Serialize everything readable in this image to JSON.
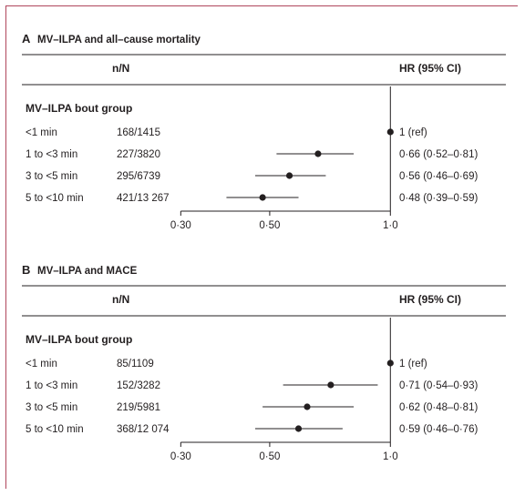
{
  "chart_data": [
    {
      "type": "forest",
      "panel_letter": "A",
      "title": "MV–ILPA and all–cause mortality",
      "col_count_header": "n/N",
      "col_hr_header": "HR (95% CI)",
      "group_label": "MV–ILPA bout group",
      "x_scale": "log",
      "xlim": [
        0.26,
        1.15
      ],
      "xticks": [
        0.3,
        0.5,
        1.0
      ],
      "xtick_labels": [
        "0·30",
        "0·50",
        "1·0"
      ],
      "reference_line": 1.0,
      "rows": [
        {
          "label": "<1 min",
          "nN": "168/1415",
          "hr": 1.0,
          "lo": null,
          "hi": null,
          "text": "1 (ref)"
        },
        {
          "label": "1 to <3 min",
          "nN": "227/3820",
          "hr": 0.66,
          "lo": 0.52,
          "hi": 0.81,
          "text": "0·66 (0·52–0·81)"
        },
        {
          "label": "3 to <5 min",
          "nN": "295/6739",
          "hr": 0.56,
          "lo": 0.46,
          "hi": 0.69,
          "text": "0·56 (0·46–0·69)"
        },
        {
          "label": "5 to <10 min",
          "nN": "421/13 267",
          "hr": 0.48,
          "lo": 0.39,
          "hi": 0.59,
          "text": "0·48 (0·39–0·59)"
        }
      ]
    },
    {
      "type": "forest",
      "panel_letter": "B",
      "title": "MV–ILPA and MACE",
      "col_count_header": "n/N",
      "col_hr_header": "HR (95% CI)",
      "group_label": "MV–ILPA bout group",
      "x_scale": "log",
      "xlim": [
        0.26,
        1.15
      ],
      "xticks": [
        0.3,
        0.5,
        1.0
      ],
      "xtick_labels": [
        "0·30",
        "0·50",
        "1·0"
      ],
      "reference_line": 1.0,
      "rows": [
        {
          "label": "<1 min",
          "nN": "85/1109",
          "hr": 1.0,
          "lo": null,
          "hi": null,
          "text": "1 (ref)"
        },
        {
          "label": "1 to <3 min",
          "nN": "152/3282",
          "hr": 0.71,
          "lo": 0.54,
          "hi": 0.93,
          "text": "0·71 (0·54–0·93)"
        },
        {
          "label": "3 to <5 min",
          "nN": "219/5981",
          "hr": 0.62,
          "lo": 0.48,
          "hi": 0.81,
          "text": "0·62 (0·48–0·81)"
        },
        {
          "label": "5 to <10 min",
          "nN": "368/12 074",
          "hr": 0.59,
          "lo": 0.46,
          "hi": 0.76,
          "text": "0·59 (0·46–0·76)"
        }
      ]
    }
  ],
  "colors": {
    "frame": "#b0465c",
    "ink": "#231f20",
    "rule": "#231f20"
  }
}
